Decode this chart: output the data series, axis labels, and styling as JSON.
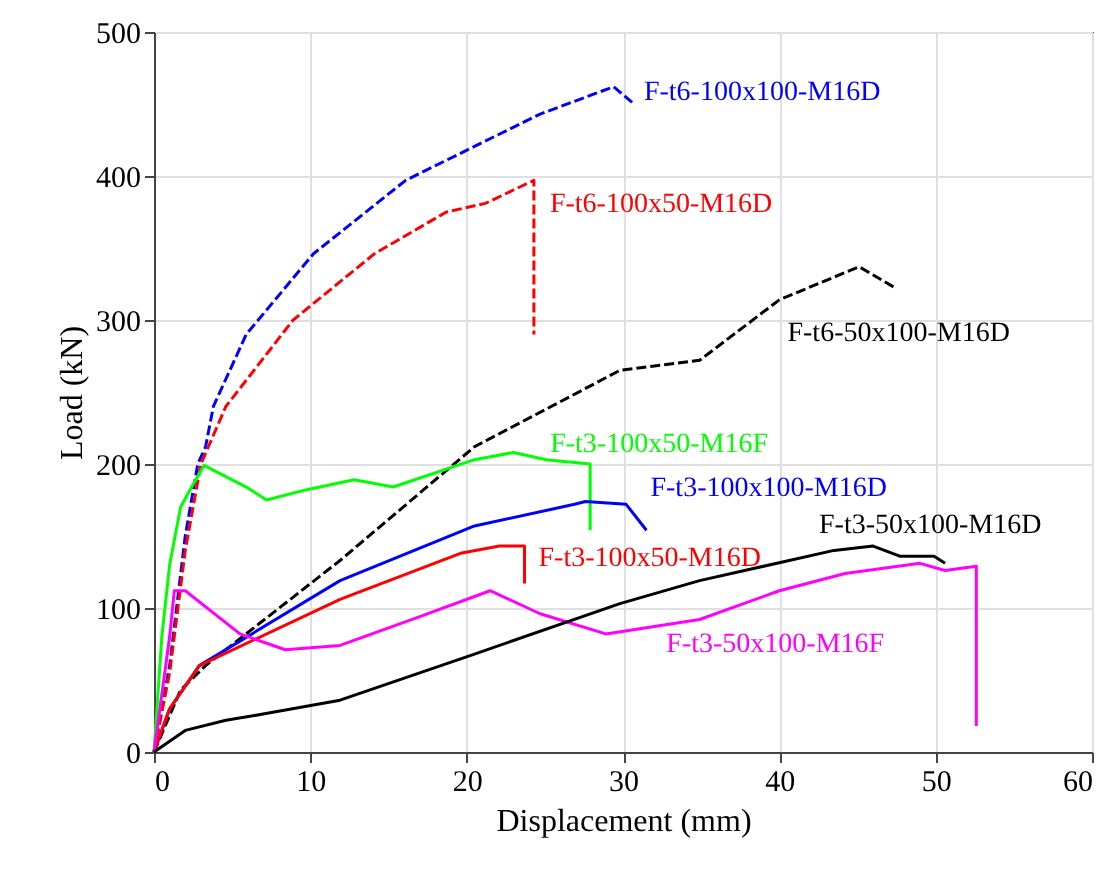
{
  "chart_data": {
    "type": "line",
    "xlabel": "Displacement (mm)",
    "ylabel": "Load (kN)",
    "xlim": [
      0,
      60
    ],
    "xticks": [
      0,
      10,
      20,
      30,
      40,
      50,
      60
    ],
    "ylim": [
      0,
      500
    ],
    "yticks": [
      0,
      100,
      200,
      300,
      400,
      500
    ],
    "grid": true,
    "marker": "none",
    "series": [
      {
        "name": "F-t6-100x100-M16D",
        "color": "#0000ff",
        "line_style": "dashed",
        "x": [
          0,
          1,
          2,
          2.8,
          3.3,
          3.8,
          5.9,
          10.2,
          16.1,
          24.7,
          29.4,
          30.7
        ],
        "values": [
          0,
          60,
          150,
          200,
          212,
          240,
          290,
          346,
          397,
          443,
          462,
          450
        ]
      },
      {
        "name": "F-t6-100x50-M16D",
        "color": "#ff0000",
        "line_style": "dashed",
        "x": [
          0,
          1,
          2,
          3,
          4.6,
          8.9,
          14.1,
          18.7,
          21.2,
          24.3,
          24.3
        ],
        "values": [
          0,
          55,
          140,
          200,
          240,
          300,
          346,
          375,
          381,
          397,
          290
        ]
      },
      {
        "name": "F-t6-50x100-M16D",
        "color": "#000000",
        "line_style": "dashed",
        "x": [
          0,
          1.7,
          3.3,
          11.9,
          20.5,
          29.8,
          34.9,
          40,
          45.1,
          47.3
        ],
        "values": [
          0,
          43,
          60,
          133,
          212,
          265,
          272,
          314,
          337,
          323
        ]
      },
      {
        "name": "F-t3-100x50-M16F",
        "color": "#00ff00",
        "line_style": "solid",
        "x": [
          0,
          0.5,
          1,
          1.7,
          2.3,
          3.2,
          5.9,
          7.2,
          9.7,
          12.8,
          15.3,
          20.5,
          23,
          25.1,
          27.9,
          27.9
        ],
        "values": [
          0,
          80,
          130,
          170,
          182,
          199,
          184,
          175,
          182,
          189,
          184,
          203,
          208,
          203,
          200,
          154
        ]
      },
      {
        "name": "F-t3-100x100-M16D",
        "color": "#0000ff",
        "line_style": "solid",
        "x": [
          0,
          1,
          2.9,
          11.9,
          20.5,
          26.9,
          27.6,
          30.2,
          31.5
        ],
        "values": [
          0,
          30,
          60,
          119,
          157,
          172,
          174,
          172,
          154
        ]
      },
      {
        "name": "F-t3-100x50-M16D",
        "color": "#ff0000",
        "line_style": "solid",
        "x": [
          0,
          1,
          2.9,
          11.9,
          19.6,
          22.1,
          23.7,
          23.7
        ],
        "values": [
          0,
          30,
          60,
          106,
          138,
          143,
          143,
          117
        ]
      },
      {
        "name": "F-t3-50x100-M16F",
        "color": "#ff00ff",
        "line_style": "solid",
        "x": [
          0,
          1,
          1.3,
          2,
          5.5,
          8.4,
          11.9,
          17,
          21.5,
          24.7,
          28.9,
          34.9,
          40,
          44.2,
          49,
          50.6,
          52.6,
          52.6
        ],
        "values": [
          0,
          80,
          112,
          112,
          82,
          71,
          74,
          94,
          112,
          96,
          82,
          92,
          112,
          124,
          131,
          126,
          129,
          18
        ]
      },
      {
        "name": "F-t3-50x100-M16D",
        "color": "#000000",
        "line_style": "solid",
        "x": [
          0,
          2,
          4.6,
          6.8,
          11.9,
          20.5,
          29.8,
          34.9,
          43.5,
          46,
          47.7,
          49.9,
          50.6
        ],
        "values": [
          0,
          15,
          22,
          26,
          36,
          68,
          103,
          119,
          140,
          143,
          136,
          136,
          131
        ]
      }
    ]
  }
}
